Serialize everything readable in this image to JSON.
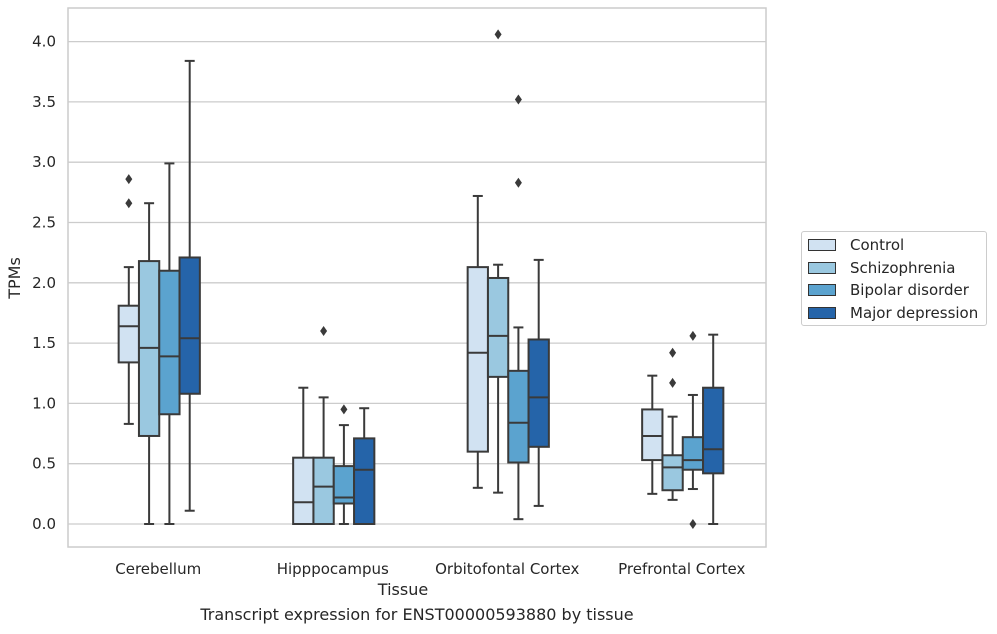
{
  "chart_data": {
    "type": "box",
    "title": "",
    "caption": "Transcript expression for ENST00000593880 by tissue",
    "xlabel": "Tissue",
    "ylabel": "TPMs",
    "ylim": [
      -0.2,
      4.27
    ],
    "yticks": [
      "0.0",
      "0.5",
      "1.0",
      "1.5",
      "2.0",
      "2.5",
      "3.0",
      "3.5",
      "4.0"
    ],
    "grid": true,
    "legend_position": "right",
    "categories": [
      "Cerebellum",
      "Hipppocampus",
      "Orbitofontal Cortex",
      "Prefrontal Cortex"
    ],
    "series": [
      {
        "name": "Control",
        "color": "#d1e2f2",
        "boxes": [
          {
            "whislo": 0.83,
            "q1": 1.34,
            "med": 1.64,
            "q3": 1.81,
            "whishi": 2.13,
            "fliers": [
              2.66,
              2.86
            ]
          },
          {
            "whislo": 0.0,
            "q1": 0.0,
            "med": 0.18,
            "q3": 0.55,
            "whishi": 1.13,
            "fliers": []
          },
          {
            "whislo": 0.3,
            "q1": 0.6,
            "med": 1.42,
            "q3": 2.13,
            "whishi": 2.72,
            "fliers": []
          },
          {
            "whislo": 0.25,
            "q1": 0.53,
            "med": 0.73,
            "q3": 0.95,
            "whishi": 1.23,
            "fliers": []
          }
        ]
      },
      {
        "name": "Schizophrenia",
        "color": "#9ac8e0",
        "boxes": [
          {
            "whislo": 0.0,
            "q1": 0.73,
            "med": 1.46,
            "q3": 2.18,
            "whishi": 2.66,
            "fliers": []
          },
          {
            "whislo": 0.0,
            "q1": 0.0,
            "med": 0.31,
            "q3": 0.55,
            "whishi": 1.05,
            "fliers": [
              1.6
            ]
          },
          {
            "whislo": 0.26,
            "q1": 1.22,
            "med": 1.56,
            "q3": 2.04,
            "whishi": 2.15,
            "fliers": [
              4.06
            ]
          },
          {
            "whislo": 0.2,
            "q1": 0.28,
            "med": 0.47,
            "q3": 0.57,
            "whishi": 0.89,
            "fliers": [
              1.17,
              1.42
            ]
          }
        ]
      },
      {
        "name": "Bipolar disorder",
        "color": "#5ba3cf",
        "boxes": [
          {
            "whislo": 0.0,
            "q1": 0.91,
            "med": 1.39,
            "q3": 2.1,
            "whishi": 2.99,
            "fliers": []
          },
          {
            "whislo": 0.0,
            "q1": 0.17,
            "med": 0.22,
            "q3": 0.48,
            "whishi": 0.82,
            "fliers": [
              0.95
            ]
          },
          {
            "whislo": 0.04,
            "q1": 0.51,
            "med": 0.84,
            "q3": 1.27,
            "whishi": 1.63,
            "fliers": [
              2.83,
              3.52
            ]
          },
          {
            "whislo": 0.29,
            "q1": 0.45,
            "med": 0.53,
            "q3": 0.72,
            "whishi": 1.07,
            "fliers": [
              0.0,
              1.56
            ]
          }
        ]
      },
      {
        "name": "Major depression",
        "color": "#2564a9",
        "boxes": [
          {
            "whislo": 0.11,
            "q1": 1.08,
            "med": 1.54,
            "q3": 2.21,
            "whishi": 3.84,
            "fliers": []
          },
          {
            "whislo": 0.0,
            "q1": 0.0,
            "med": 0.45,
            "q3": 0.71,
            "whishi": 0.96,
            "fliers": []
          },
          {
            "whislo": 0.15,
            "q1": 0.64,
            "med": 1.05,
            "q3": 1.53,
            "whishi": 2.19,
            "fliers": []
          },
          {
            "whislo": 0.0,
            "q1": 0.42,
            "med": 0.62,
            "q3": 1.13,
            "whishi": 1.57,
            "fliers": []
          }
        ]
      }
    ]
  }
}
